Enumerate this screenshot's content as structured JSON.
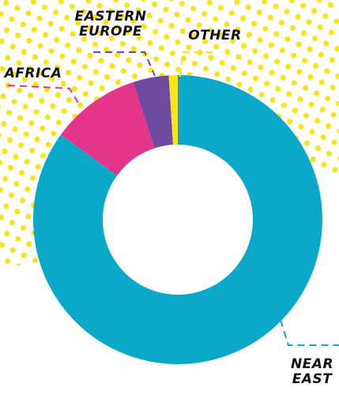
{
  "chart_data": {
    "type": "donut",
    "categories": [
      "NEAR EAST",
      "AFRICA",
      "EASTERN EUROPE",
      "OTHER"
    ],
    "values": [
      85,
      10,
      4,
      1
    ],
    "colors": [
      "#0aa9c9",
      "#e4358a",
      "#6f4a9e",
      "#f6e51b"
    ]
  }
}
